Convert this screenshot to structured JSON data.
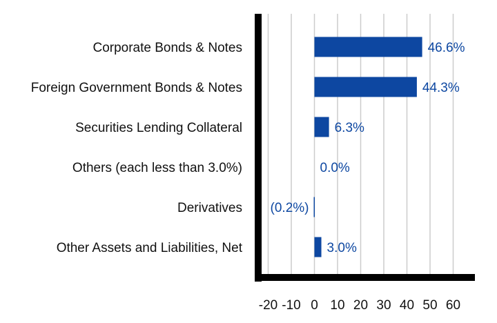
{
  "chart_data": {
    "type": "bar",
    "orientation": "horizontal",
    "categories": [
      "Corporate Bonds & Notes",
      "Foreign Government Bonds & Notes",
      "Securities Lending Collateral",
      "Others (each less than 3.0%)",
      "Derivatives",
      "Other Assets and Liabilities, Net"
    ],
    "values": [
      46.6,
      44.3,
      6.3,
      0.0,
      -0.2,
      3.0
    ],
    "value_labels": [
      "46.6%",
      "44.3%",
      "6.3%",
      "0.0%",
      "(0.2%)",
      "3.0%"
    ],
    "x_ticks": [
      -20,
      -10,
      0,
      10,
      20,
      30,
      40,
      50,
      60
    ],
    "x_tick_labels": [
      "-20",
      "-10",
      "0",
      "10",
      "20",
      "30",
      "40",
      "50",
      "60"
    ],
    "xlim": [
      -26,
      70
    ],
    "grid": true,
    "bar_color": "#0d47a1",
    "label_color": "#0d47a1",
    "gridline_color": "#cccccc",
    "axis_color": "#000000"
  }
}
